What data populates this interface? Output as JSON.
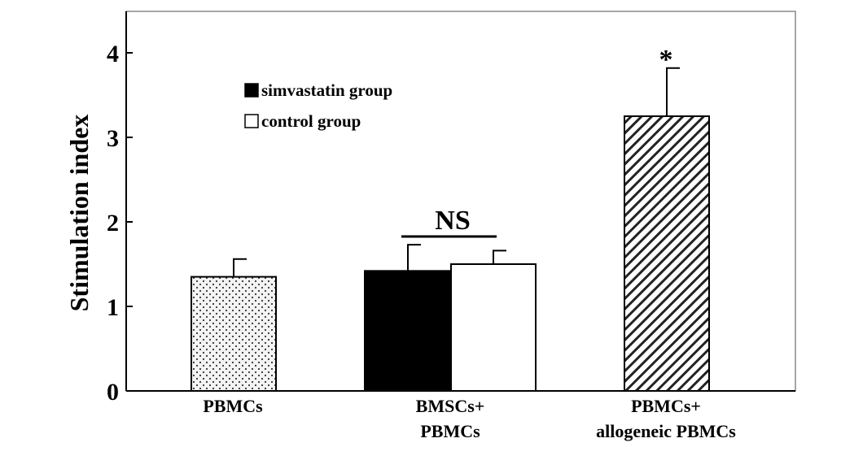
{
  "chart_data": {
    "type": "bar",
    "ylabel": "Stimulation index",
    "ylim": [
      0,
      4.5
    ],
    "yticks": [
      "0",
      "1",
      "2",
      "3",
      "4"
    ],
    "categories": [
      "PBMCs",
      "BMSCs+\nPBMCs",
      "PBMCs+\nallogeneic PBMCs"
    ],
    "legend": {
      "placement": "upper-left",
      "entries": [
        "simvastatin group",
        "control group"
      ]
    },
    "bars": [
      {
        "category": "PBMCs",
        "group": "",
        "value": 1.35,
        "error": 0.21,
        "fill": "dotted"
      },
      {
        "category": "BMSCs+\nPBMCs",
        "group": "simvastatin group",
        "value": 1.42,
        "error": 0.31,
        "fill": "black"
      },
      {
        "category": "BMSCs+\nPBMCs",
        "group": "control group",
        "value": 1.5,
        "error": 0.16,
        "fill": "white"
      },
      {
        "category": "PBMCs+\nallogeneic PBMCs",
        "group": "",
        "value": 3.25,
        "error": 0.57,
        "fill": "hatched"
      }
    ],
    "annotations": [
      {
        "text": "NS",
        "category": "BMSCs+\nPBMCs",
        "over": "both groups"
      },
      {
        "text": "*",
        "category": "PBMCs+\nallogeneic PBMCs"
      }
    ],
    "grid": false
  }
}
